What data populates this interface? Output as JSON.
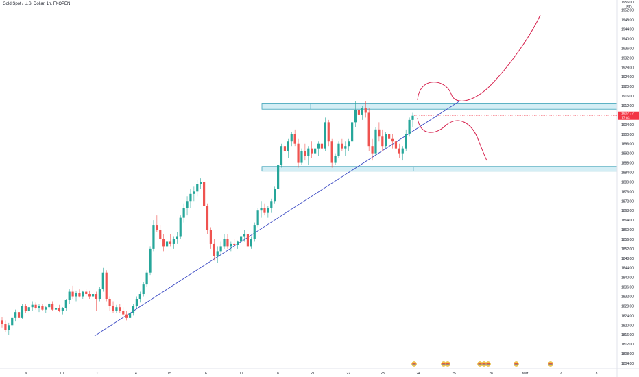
{
  "chart_data": {
    "type": "candlestick",
    "title": "Gold Spot / U.S. Dollar, 1h, FXOPEN",
    "currency": "USD",
    "y_axis_top_label": "1956.00",
    "ylim": [
      1800,
      1956
    ],
    "y_ticks": [
      1804,
      1808,
      1812,
      1816,
      1820,
      1824,
      1828,
      1832,
      1836,
      1840,
      1844,
      1848,
      1852,
      1856,
      1860,
      1864,
      1868,
      1872,
      1876,
      1880,
      1884,
      1888,
      1892,
      1896,
      1900,
      1904,
      1908,
      1912,
      1916,
      1920,
      1924,
      1928,
      1932,
      1936,
      1940,
      1944,
      1948,
      1952
    ],
    "x_ticks": [
      "9",
      "10",
      "11",
      "14",
      "15",
      "16",
      "17",
      "18",
      "21",
      "22",
      "23",
      "24",
      "25",
      "28",
      "Mar",
      "2",
      "3"
    ],
    "current_price": {
      "value": "1907.77",
      "countdown": "17:03",
      "price": 1907.77
    },
    "zones": [
      {
        "name": "resistance-zone",
        "top": 1913.0,
        "bottom": 1910.5,
        "x_start": "17",
        "x_end": "3"
      },
      {
        "name": "support-zone",
        "top": 1886.5,
        "bottom": 1884.5,
        "x_start": "17",
        "x_end": "3"
      }
    ],
    "trendline": {
      "from": {
        "x": "10",
        "price": 1815.5
      },
      "to": {
        "x": "24",
        "price": 1914
      }
    },
    "candles_ohlc": [
      [
        1822.0,
        1823.5,
        1819.0,
        1820.5
      ],
      [
        1820.5,
        1822.0,
        1817.0,
        1818.0
      ],
      [
        1818.0,
        1821.0,
        1816.0,
        1820.0
      ],
      [
        1820.0,
        1824.0,
        1818.5,
        1823.0
      ],
      [
        1823.0,
        1826.5,
        1821.5,
        1825.5
      ],
      [
        1825.5,
        1826.0,
        1822.0,
        1823.0
      ],
      [
        1823.0,
        1829.0,
        1822.5,
        1828.0
      ],
      [
        1828.0,
        1829.0,
        1825.0,
        1826.0
      ],
      [
        1826.0,
        1828.5,
        1824.0,
        1827.5
      ],
      [
        1827.5,
        1830.0,
        1826.0,
        1828.5
      ],
      [
        1828.5,
        1829.5,
        1826.5,
        1827.0
      ],
      [
        1827.0,
        1829.0,
        1825.5,
        1828.0
      ],
      [
        1828.0,
        1829.0,
        1826.0,
        1826.5
      ],
      [
        1826.5,
        1828.0,
        1825.0,
        1827.5
      ],
      [
        1827.5,
        1829.5,
        1826.5,
        1829.0
      ],
      [
        1829.0,
        1830.0,
        1826.0,
        1826.5
      ],
      [
        1826.5,
        1828.0,
        1825.5,
        1827.0
      ],
      [
        1827.0,
        1828.5,
        1825.5,
        1826.0
      ],
      [
        1826.0,
        1827.5,
        1824.5,
        1827.0
      ],
      [
        1827.0,
        1831.0,
        1826.0,
        1830.5
      ],
      [
        1830.5,
        1835.0,
        1829.0,
        1834.0
      ],
      [
        1834.0,
        1836.5,
        1831.0,
        1832.0
      ],
      [
        1832.0,
        1834.5,
        1830.0,
        1833.5
      ],
      [
        1833.5,
        1835.0,
        1831.5,
        1832.0
      ],
      [
        1832.0,
        1834.5,
        1831.0,
        1834.0
      ],
      [
        1834.0,
        1835.0,
        1832.0,
        1833.0
      ],
      [
        1833.0,
        1834.5,
        1831.0,
        1832.0
      ],
      [
        1832.0,
        1834.0,
        1830.0,
        1833.0
      ],
      [
        1833.0,
        1834.0,
        1826.0,
        1831.0
      ],
      [
        1831.0,
        1836.0,
        1830.0,
        1835.0
      ],
      [
        1835.0,
        1844.0,
        1834.0,
        1842.0
      ],
      [
        1842.0,
        1843.0,
        1830.0,
        1831.0
      ],
      [
        1831.0,
        1832.0,
        1826.0,
        1828.0
      ],
      [
        1828.0,
        1830.0,
        1825.0,
        1826.0
      ],
      [
        1826.0,
        1828.5,
        1825.0,
        1827.5
      ],
      [
        1827.5,
        1829.0,
        1825.0,
        1826.0
      ],
      [
        1826.0,
        1827.5,
        1823.5,
        1824.5
      ],
      [
        1824.5,
        1826.0,
        1822.0,
        1823.0
      ],
      [
        1823.0,
        1825.5,
        1821.5,
        1825.0
      ],
      [
        1825.0,
        1829.0,
        1824.0,
        1828.0
      ],
      [
        1828.0,
        1832.0,
        1827.0,
        1831.0
      ],
      [
        1831.0,
        1834.0,
        1829.5,
        1833.0
      ],
      [
        1833.0,
        1838.0,
        1832.0,
        1837.0
      ],
      [
        1837.0,
        1843.0,
        1836.0,
        1842.0
      ],
      [
        1842.0,
        1853.0,
        1841.0,
        1852.0
      ],
      [
        1852.0,
        1864.0,
        1851.0,
        1862.0
      ],
      [
        1862.0,
        1866.0,
        1859.0,
        1860.0
      ],
      [
        1860.0,
        1862.0,
        1855.0,
        1856.0
      ],
      [
        1856.0,
        1858.0,
        1851.0,
        1853.0
      ],
      [
        1853.0,
        1856.0,
        1850.0,
        1855.0
      ],
      [
        1855.0,
        1858.0,
        1853.0,
        1854.0
      ],
      [
        1854.0,
        1857.0,
        1852.0,
        1856.0
      ],
      [
        1856.0,
        1859.0,
        1854.0,
        1857.0
      ],
      [
        1857.0,
        1866.0,
        1856.0,
        1865.0
      ],
      [
        1865.0,
        1871.0,
        1863.0,
        1869.0
      ],
      [
        1869.0,
        1874.0,
        1866.0,
        1872.0
      ],
      [
        1872.0,
        1877.0,
        1869.0,
        1875.0
      ],
      [
        1875.0,
        1878.0,
        1872.0,
        1876.0
      ],
      [
        1876.0,
        1881.0,
        1874.0,
        1879.0
      ],
      [
        1879.0,
        1881.5,
        1877.0,
        1880.0
      ],
      [
        1880.0,
        1881.0,
        1868.0,
        1870.0
      ],
      [
        1870.0,
        1871.0,
        1858.0,
        1860.0
      ],
      [
        1860.0,
        1861.0,
        1852.0,
        1854.0
      ],
      [
        1854.0,
        1856.0,
        1847.0,
        1849.0
      ],
      [
        1849.0,
        1853.0,
        1846.0,
        1851.0
      ],
      [
        1851.0,
        1855.0,
        1849.0,
        1853.0
      ],
      [
        1853.0,
        1858.0,
        1852.0,
        1856.0
      ],
      [
        1856.0,
        1858.0,
        1852.0,
        1853.0
      ],
      [
        1853.0,
        1855.0,
        1851.0,
        1854.0
      ],
      [
        1854.0,
        1856.0,
        1852.0,
        1853.5
      ],
      [
        1853.5,
        1855.5,
        1852.0,
        1855.0
      ],
      [
        1855.0,
        1858.0,
        1853.5,
        1857.0
      ],
      [
        1857.0,
        1860.0,
        1855.0,
        1858.0
      ],
      [
        1858.0,
        1859.0,
        1852.0,
        1853.0
      ],
      [
        1853.0,
        1857.0,
        1852.0,
        1856.0
      ],
      [
        1856.0,
        1863.0,
        1855.0,
        1862.0
      ],
      [
        1862.0,
        1869.0,
        1861.0,
        1868.0
      ],
      [
        1868.0,
        1872.0,
        1865.0,
        1869.0
      ],
      [
        1869.0,
        1871.0,
        1866.0,
        1867.0
      ],
      [
        1867.0,
        1870.0,
        1865.0,
        1869.0
      ],
      [
        1869.0,
        1873.0,
        1867.0,
        1872.0
      ],
      [
        1872.0,
        1878.0,
        1871.0,
        1877.0
      ],
      [
        1877.0,
        1888.0,
        1876.0,
        1887.0
      ],
      [
        1887.0,
        1896.0,
        1886.0,
        1895.0
      ],
      [
        1895.0,
        1899.0,
        1891.0,
        1893.0
      ],
      [
        1893.0,
        1898.0,
        1890.0,
        1897.0
      ],
      [
        1897.0,
        1901.0,
        1895.0,
        1900.0
      ],
      [
        1900.0,
        1902.0,
        1895.0,
        1896.0
      ],
      [
        1896.0,
        1898.0,
        1886.0,
        1888.0
      ],
      [
        1888.0,
        1894.0,
        1887.0,
        1893.0
      ],
      [
        1893.0,
        1896.0,
        1889.0,
        1891.0
      ],
      [
        1891.0,
        1895.0,
        1887.0,
        1894.0
      ],
      [
        1894.0,
        1897.0,
        1890.0,
        1892.0
      ],
      [
        1892.0,
        1895.0,
        1889.0,
        1894.0
      ],
      [
        1894.0,
        1897.0,
        1891.0,
        1896.0
      ],
      [
        1896.0,
        1899.0,
        1893.0,
        1894.0
      ],
      [
        1894.0,
        1907.0,
        1893.0,
        1905.0
      ],
      [
        1905.0,
        1906.0,
        1895.0,
        1897.0
      ],
      [
        1897.0,
        1898.0,
        1886.0,
        1888.0
      ],
      [
        1888.0,
        1892.0,
        1887.0,
        1891.0
      ],
      [
        1891.0,
        1897.0,
        1890.0,
        1896.0
      ],
      [
        1896.0,
        1898.0,
        1893.0,
        1894.0
      ],
      [
        1894.0,
        1897.0,
        1891.0,
        1895.0
      ],
      [
        1895.0,
        1898.0,
        1893.0,
        1897.0
      ],
      [
        1897.0,
        1907.0,
        1896.0,
        1905.0
      ],
      [
        1905.0,
        1914.0,
        1903.0,
        1910.0
      ],
      [
        1910.0,
        1913.0,
        1906.0,
        1908.0
      ],
      [
        1908.0,
        1912.0,
        1906.0,
        1911.0
      ],
      [
        1911.0,
        1914.0,
        1907.0,
        1909.0
      ],
      [
        1909.0,
        1911.0,
        1893.0,
        1895.0
      ],
      [
        1895.0,
        1898.0,
        1889.0,
        1892.0
      ],
      [
        1892.0,
        1903.0,
        1891.0,
        1902.0
      ],
      [
        1902.0,
        1905.0,
        1897.0,
        1899.0
      ],
      [
        1899.0,
        1902.0,
        1893.0,
        1895.0
      ],
      [
        1895.0,
        1901.0,
        1894.0,
        1900.0
      ],
      [
        1900.0,
        1903.0,
        1896.0,
        1898.0
      ],
      [
        1898.0,
        1900.0,
        1894.0,
        1897.0
      ],
      [
        1897.0,
        1899.0,
        1893.0,
        1894.0
      ],
      [
        1894.0,
        1896.0,
        1890.0,
        1892.0
      ],
      [
        1892.0,
        1895.0,
        1889.0,
        1894.0
      ],
      [
        1894.0,
        1902.0,
        1893.0,
        1900.0
      ],
      [
        1900.0,
        1907.0,
        1899.0,
        1906.0
      ],
      [
        1906.0,
        1909.0,
        1903.0,
        1907.77
      ]
    ],
    "projections": [
      {
        "name": "bullish-projection",
        "description": "small dip then breakout higher"
      },
      {
        "name": "bearish-projection",
        "description": "dip back toward support"
      }
    ],
    "economic_events": [
      "US",
      "US US",
      "US US US",
      "US",
      "US"
    ],
    "colors": {
      "up": "#26a69a",
      "down": "#ef5350",
      "zone_fill": "#d4eef5",
      "zone_stroke": "#3aa0b7",
      "trendline": "#3c4bc4",
      "projection": "#d61f4c",
      "price_label_bg": "#f23645"
    }
  }
}
